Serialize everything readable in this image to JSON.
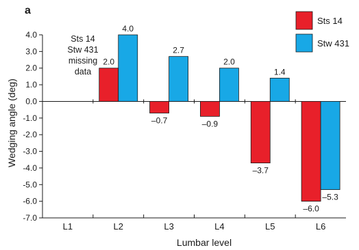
{
  "chart_data": {
    "type": "bar",
    "panel_label": "a",
    "xlabel": "Lumbar level",
    "ylabel": "Wedging angle (deg)",
    "ylim": [
      -7.0,
      4.0
    ],
    "yticks": [
      "4.0",
      "3.0",
      "2.0",
      "1.0",
      "0.0",
      "-1.0",
      "-2.0",
      "-3.0",
      "-4.0",
      "-5.0",
      "-6.0",
      "-7.0"
    ],
    "categories": [
      "L1",
      "L2",
      "L3",
      "L4",
      "L5",
      "L6"
    ],
    "series": [
      {
        "name": "Sts 14",
        "color": "#e8202a",
        "values": [
          null,
          2.0,
          -0.7,
          -0.9,
          -3.7,
          -6.0
        ],
        "labels": [
          "",
          "2.0",
          "–0.7",
          "–0.9",
          "–3.7",
          "–6.0"
        ]
      },
      {
        "name": "Stw 431",
        "color": "#18a8e6",
        "values": [
          null,
          4.0,
          2.7,
          2.0,
          1.4,
          -5.3
        ],
        "labels": [
          "",
          "4.0",
          "2.7",
          "2.0",
          "1.4",
          "–5.3"
        ]
      }
    ],
    "annotation": [
      "Sts 14",
      "Stw 431",
      "missing",
      "data"
    ],
    "legend_position": "top-right",
    "grid": false
  }
}
